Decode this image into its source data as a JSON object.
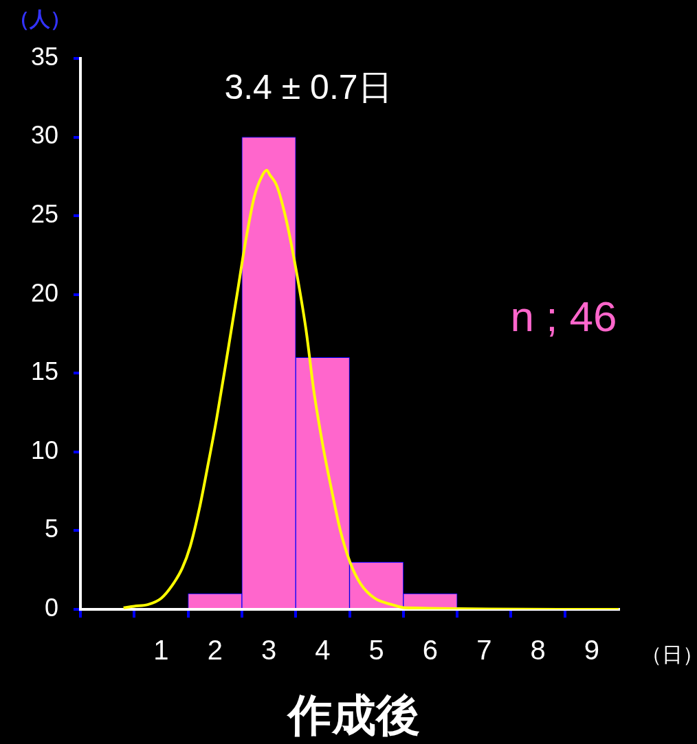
{
  "chart_data": {
    "type": "histogram",
    "ylabel": "（人）",
    "xlabel": "作成後",
    "annotations": [
      "3.4 ± 0.7日",
      "n ; 46",
      "（日）"
    ],
    "bins": [
      -0.5,
      0.5,
      1.5,
      2.5,
      3.5,
      4.5,
      5.5,
      6.5,
      7.5,
      8.5,
      9.5
    ],
    "values": [
      0,
      0,
      1,
      30,
      16,
      3,
      1,
      0,
      0,
      0
    ],
    "color": "#ff66cc",
    "series": [
      {
        "type": "line",
        "color": "#ffff00",
        "x": [
          0.3,
          0.5,
          0.75,
          1.0,
          1.2,
          1.39,
          1.54,
          1.71,
          1.86,
          2.03,
          2.22,
          2.41,
          2.57,
          2.73,
          2.87,
          2.96,
          3.02,
          3.15,
          3.32,
          3.5,
          3.69,
          3.84,
          4.01,
          4.16,
          4.33,
          4.52,
          4.71,
          4.97,
          5.29,
          5.54,
          9.5
        ],
        "values": [
          0.1,
          0.2,
          0.3,
          0.7,
          1.5,
          2.6,
          4.0,
          6.4,
          9.0,
          12.1,
          16.0,
          20.0,
          23.4,
          26.2,
          27.5,
          27.9,
          27.6,
          26.9,
          24.8,
          21.7,
          17.8,
          13.8,
          10.3,
          7.7,
          5.0,
          2.9,
          1.6,
          0.7,
          0.3,
          0.1,
          0
        ]
      }
    ],
    "xlim": [
      -0.5,
      9.5
    ],
    "xticks": [
      {
        "value": -0.5,
        "label": null
      },
      {
        "value": 0.5,
        "label": null
      },
      {
        "value": 1,
        "label": "1"
      },
      {
        "value": 1.5,
        "label": null
      },
      {
        "value": 2,
        "label": "2"
      },
      {
        "value": 2.5,
        "label": null
      },
      {
        "value": 3,
        "label": "3"
      },
      {
        "value": 3.5,
        "label": null
      },
      {
        "value": 4,
        "label": "4"
      },
      {
        "value": 4.5,
        "label": null
      },
      {
        "value": 5,
        "label": "5"
      },
      {
        "value": 5.5,
        "label": null
      },
      {
        "value": 6,
        "label": "6"
      },
      {
        "value": 6.5,
        "label": null
      },
      {
        "value": 7,
        "label": "7"
      },
      {
        "value": 7.5,
        "label": null
      },
      {
        "value": 8,
        "label": "8"
      },
      {
        "value": 8.5,
        "label": null
      },
      {
        "value": 9,
        "label": "9"
      }
    ],
    "ylim": [
      0,
      35
    ],
    "yticks": [
      0,
      5,
      10,
      15,
      20,
      25,
      30,
      35
    ],
    "grid": false,
    "legend": false,
    "marker": "none"
  }
}
